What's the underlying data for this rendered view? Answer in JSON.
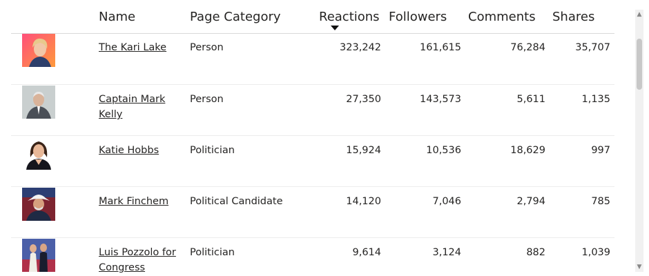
{
  "table": {
    "columns": {
      "name": "Name",
      "category": "Page Category",
      "reactions": "Reactions",
      "followers": "Followers",
      "comments": "Comments",
      "shares": "Shares"
    },
    "sort": {
      "column": "Reactions",
      "direction": "descending"
    },
    "rows": [
      {
        "name": "The Kari Lake",
        "category": "Person",
        "reactions": "323,242",
        "followers": "161,615",
        "comments": "76,284",
        "shares": "35,707"
      },
      {
        "name": "Captain Mark Kelly",
        "category": "Person",
        "reactions": "27,350",
        "followers": "143,573",
        "comments": "5,611",
        "shares": "1,135"
      },
      {
        "name": "Katie Hobbs",
        "category": "Politician",
        "reactions": "15,924",
        "followers": "10,536",
        "comments": "18,629",
        "shares": "997"
      },
      {
        "name": "Mark Finchem",
        "category": "Political Candidate",
        "reactions": "14,120",
        "followers": "7,046",
        "comments": "2,794",
        "shares": "785"
      },
      {
        "name": "Luis Pozzolo for Congress",
        "category": "Politician",
        "reactions": "9,614",
        "followers": "3,124",
        "comments": "882",
        "shares": "1,039"
      }
    ]
  },
  "colors": {
    "text": "#252423",
    "header_border": "#d9d9d9",
    "row_border": "#ececec",
    "scroll_thumb": "#c8c8c8"
  },
  "icons": {
    "sort": "caret-down-icon",
    "scroll_up": "chevron-up-icon",
    "scroll_down": "chevron-down-icon"
  }
}
